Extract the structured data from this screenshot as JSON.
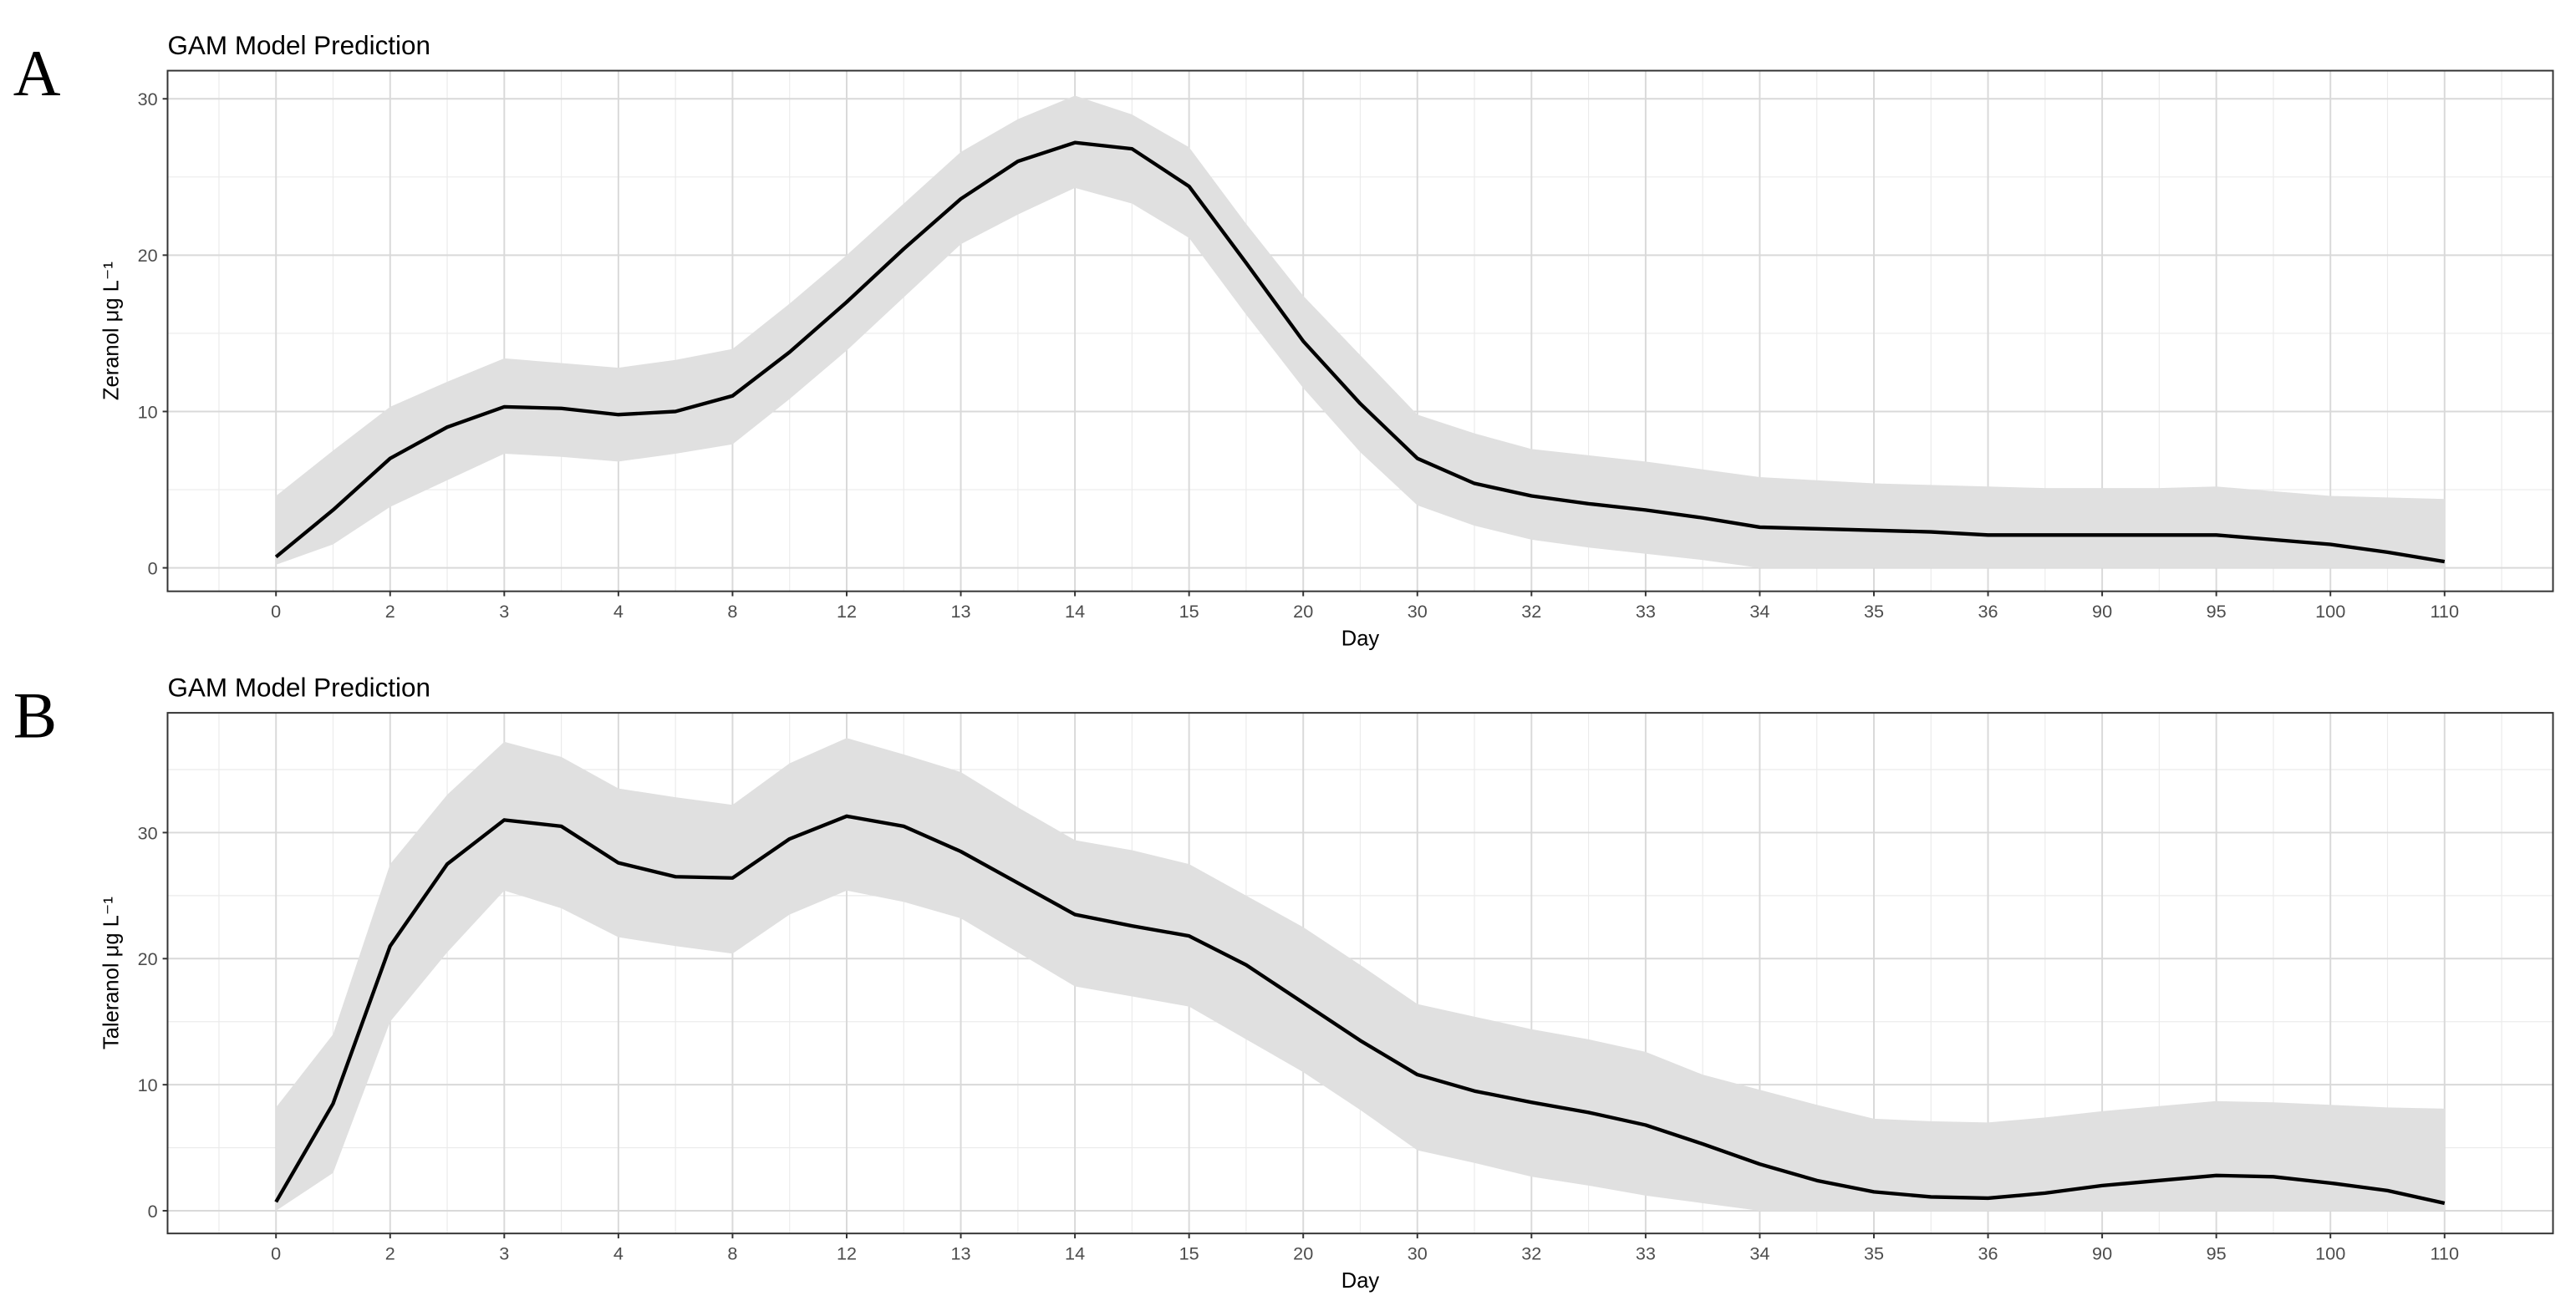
{
  "chart_data": [
    {
      "type": "line",
      "panel_label": "A",
      "title": "GAM Model Prediction",
      "x_label": "Day",
      "y_label": "Zeranol μg L⁻¹",
      "color": "#000000",
      "band_color": "#e0e0e0",
      "grid": true,
      "xlim": [
        0.05,
        20.95
      ],
      "ylim": [
        -1.5,
        31.8
      ],
      "xticks": [
        {
          "value": 1,
          "label": "0"
        },
        {
          "value": 2,
          "label": "2"
        },
        {
          "value": 3,
          "label": "3"
        },
        {
          "value": 4,
          "label": "4"
        },
        {
          "value": 5,
          "label": "8"
        },
        {
          "value": 6,
          "label": "12"
        },
        {
          "value": 7,
          "label": "13"
        },
        {
          "value": 8,
          "label": "14"
        },
        {
          "value": 9,
          "label": "15"
        },
        {
          "value": 10,
          "label": "20"
        },
        {
          "value": 11,
          "label": "30"
        },
        {
          "value": 12,
          "label": "32"
        },
        {
          "value": 13,
          "label": "33"
        },
        {
          "value": 14,
          "label": "34"
        },
        {
          "value": 15,
          "label": "35"
        },
        {
          "value": 16,
          "label": "36"
        },
        {
          "value": 17,
          "label": "90"
        },
        {
          "value": 18,
          "label": "95"
        },
        {
          "value": 19,
          "label": "100"
        },
        {
          "value": 20,
          "label": "110"
        }
      ],
      "xminorticks": [
        0.5,
        1.5,
        2.5,
        3.5,
        4.5,
        5.5,
        6.5,
        7.5,
        8.5,
        9.5,
        10.5,
        11.5,
        12.5,
        13.5,
        14.5,
        15.5,
        16.5,
        17.5,
        18.5,
        19.5,
        20.5
      ],
      "yticks": [
        0,
        10,
        20,
        30
      ],
      "yminorticks": [
        5,
        15,
        25
      ],
      "x": [
        1,
        1.5,
        2,
        2.5,
        3,
        3.5,
        4,
        4.5,
        5,
        5.5,
        6,
        6.5,
        7,
        7.5,
        8,
        8.5,
        9,
        9.5,
        10,
        10.5,
        11,
        11.5,
        12,
        12.5,
        13,
        13.5,
        14,
        14.5,
        15,
        15.5,
        16,
        16.5,
        17,
        17.5,
        18,
        18.5,
        19,
        19.5,
        20
      ],
      "values": [
        0.7,
        3.7,
        7.0,
        9.0,
        10.3,
        10.2,
        9.8,
        10.0,
        11.0,
        13.8,
        17.0,
        20.4,
        23.6,
        26.0,
        27.2,
        26.8,
        24.4,
        19.5,
        14.5,
        10.5,
        7.0,
        5.4,
        4.6,
        4.1,
        3.7,
        3.2,
        2.6,
        2.5,
        2.4,
        2.3,
        2.1,
        2.1,
        2.1,
        2.1,
        2.1,
        1.8,
        1.5,
        1.0,
        0.4
      ],
      "lower": [
        0.2,
        1.5,
        3.9,
        5.6,
        7.3,
        7.1,
        6.8,
        7.3,
        7.9,
        10.8,
        13.9,
        17.3,
        20.7,
        22.6,
        24.3,
        23.3,
        21.1,
        16.2,
        11.5,
        7.4,
        4.0,
        2.7,
        1.8,
        1.3,
        0.9,
        0.5,
        0,
        0,
        0,
        0,
        0,
        0,
        0,
        0,
        0,
        0,
        0,
        0,
        0
      ],
      "upper": [
        4.6,
        7.5,
        10.3,
        11.9,
        13.4,
        13.1,
        12.8,
        13.3,
        14.0,
        16.9,
        20.0,
        23.3,
        26.6,
        28.7,
        30.2,
        29.0,
        26.9,
        22.0,
        17.4,
        13.6,
        9.8,
        8.6,
        7.6,
        7.2,
        6.8,
        6.3,
        5.8,
        5.6,
        5.4,
        5.3,
        5.2,
        5.1,
        5.1,
        5.1,
        5.2,
        4.9,
        4.6,
        4.5,
        4.4
      ]
    },
    {
      "type": "line",
      "panel_label": "B",
      "title": "GAM Model Prediction",
      "x_label": "Day",
      "y_label": "Taleranol μg L⁻¹",
      "color": "#000000",
      "band_color": "#e0e0e0",
      "grid": true,
      "xlim": [
        0.05,
        20.95
      ],
      "ylim": [
        -1.8,
        39.5
      ],
      "xticks": [
        {
          "value": 1,
          "label": "0"
        },
        {
          "value": 2,
          "label": "2"
        },
        {
          "value": 3,
          "label": "3"
        },
        {
          "value": 4,
          "label": "4"
        },
        {
          "value": 5,
          "label": "8"
        },
        {
          "value": 6,
          "label": "12"
        },
        {
          "value": 7,
          "label": "13"
        },
        {
          "value": 8,
          "label": "14"
        },
        {
          "value": 9,
          "label": "15"
        },
        {
          "value": 10,
          "label": "20"
        },
        {
          "value": 11,
          "label": "30"
        },
        {
          "value": 12,
          "label": "32"
        },
        {
          "value": 13,
          "label": "33"
        },
        {
          "value": 14,
          "label": "34"
        },
        {
          "value": 15,
          "label": "35"
        },
        {
          "value": 16,
          "label": "36"
        },
        {
          "value": 17,
          "label": "90"
        },
        {
          "value": 18,
          "label": "95"
        },
        {
          "value": 19,
          "label": "100"
        },
        {
          "value": 20,
          "label": "110"
        }
      ],
      "xminorticks": [
        0.5,
        1.5,
        2.5,
        3.5,
        4.5,
        5.5,
        6.5,
        7.5,
        8.5,
        9.5,
        10.5,
        11.5,
        12.5,
        13.5,
        14.5,
        15.5,
        16.5,
        17.5,
        18.5,
        19.5,
        20.5
      ],
      "yticks": [
        0,
        10,
        20,
        30
      ],
      "yminorticks": [
        5,
        15,
        25,
        35
      ],
      "x": [
        1,
        1.5,
        2,
        2.5,
        3,
        3.5,
        4,
        4.5,
        5,
        5.5,
        6,
        6.5,
        7,
        7.5,
        8,
        8.5,
        9,
        9.5,
        10,
        10.5,
        11,
        11.5,
        12,
        12.5,
        13,
        13.5,
        14,
        14.5,
        15,
        15.5,
        16,
        16.5,
        17,
        17.5,
        18,
        18.5,
        19,
        19.5,
        20
      ],
      "values": [
        0.7,
        8.5,
        21.0,
        27.5,
        31.0,
        30.5,
        27.6,
        26.5,
        26.4,
        29.5,
        31.3,
        30.5,
        28.5,
        26.0,
        23.5,
        22.6,
        21.8,
        19.5,
        16.5,
        13.5,
        10.8,
        9.5,
        8.6,
        7.8,
        6.8,
        5.3,
        3.7,
        2.4,
        1.5,
        1.1,
        1.0,
        1.4,
        2.0,
        2.4,
        2.8,
        2.7,
        2.2,
        1.6,
        0.6
      ],
      "lower": [
        0,
        3,
        15,
        20.5,
        25.4,
        24,
        21.7,
        21,
        20.4,
        23.5,
        25.4,
        24.5,
        23.2,
        20.5,
        17.8,
        17,
        16.2,
        13.6,
        11,
        8,
        4.8,
        3.8,
        2.7,
        2,
        1.2,
        0.6,
        0,
        0,
        0,
        0,
        0,
        0,
        0,
        0,
        0,
        0,
        0,
        0,
        0
      ],
      "upper": [
        8.2,
        14,
        27.5,
        33,
        37.2,
        36,
        33.5,
        32.8,
        32.2,
        35.5,
        37.5,
        36.2,
        34.8,
        32,
        29.4,
        28.6,
        27.5,
        25,
        22.5,
        19.5,
        16.4,
        15.4,
        14.4,
        13.6,
        12.6,
        10.8,
        9.6,
        8.4,
        7.3,
        7.1,
        7.0,
        7.4,
        7.9,
        8.3,
        8.7,
        8.6,
        8.4,
        8.2,
        8.1
      ]
    }
  ]
}
